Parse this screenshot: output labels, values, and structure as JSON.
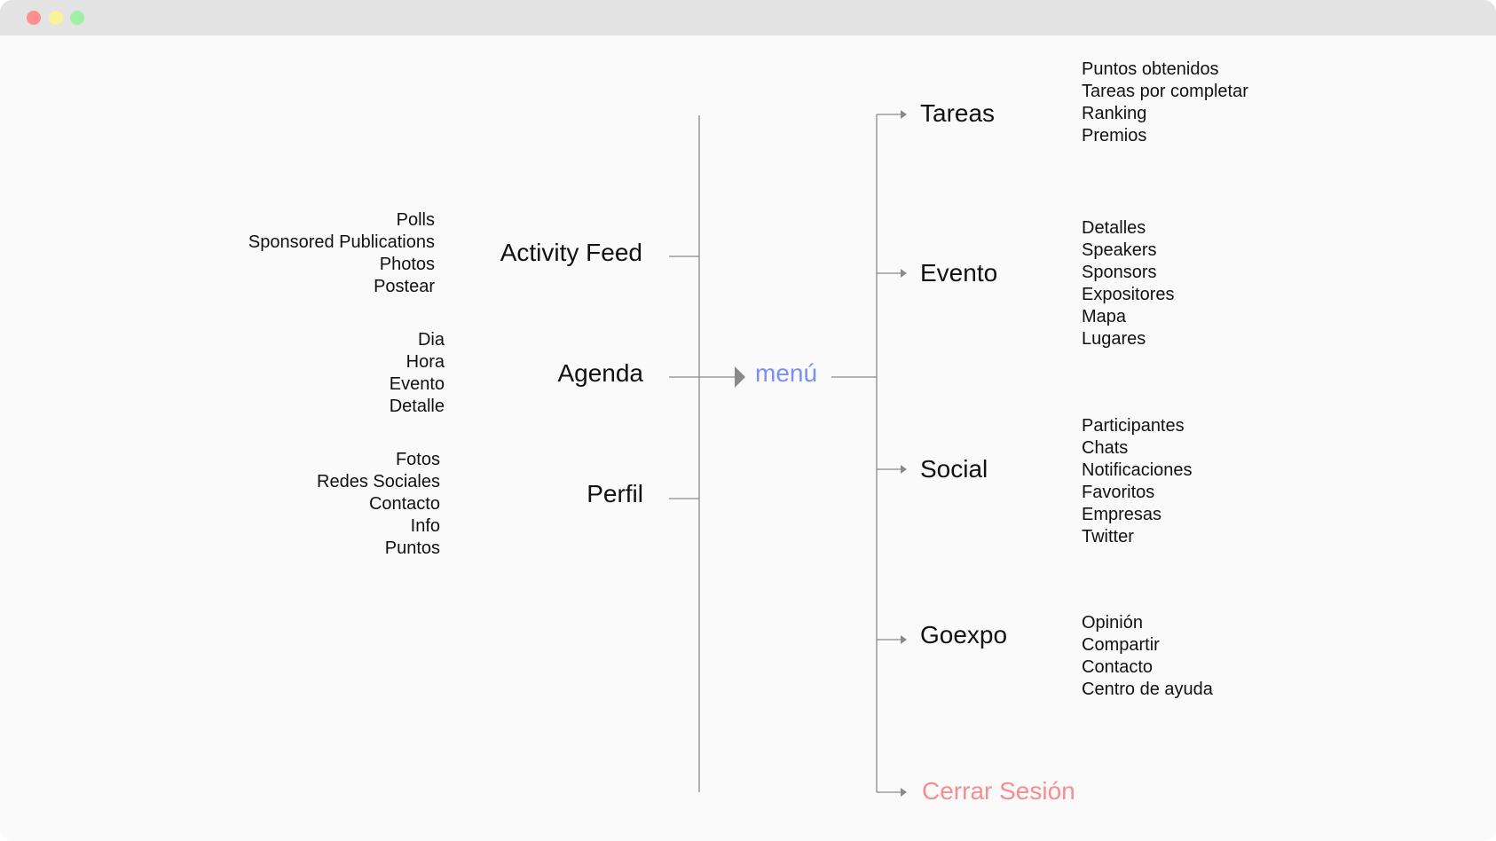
{
  "window": {
    "controls": [
      {
        "name": "close",
        "color": "#fd8f8f"
      },
      {
        "name": "minimize",
        "color": "#f8f29a"
      },
      {
        "name": "maximize",
        "color": "#9ff0a5"
      }
    ]
  },
  "colors": {
    "center": "#7b8ff0",
    "logout": "#f58f8f",
    "line": "#8a8a8a"
  },
  "center": {
    "label": "menú"
  },
  "left": [
    {
      "label": "Activity Feed",
      "items": [
        "Polls",
        "Sponsored Publications",
        "Photos",
        "Postear"
      ]
    },
    {
      "label": "Agenda",
      "items": [
        "Dia",
        "Hora",
        "Evento",
        "Detalle"
      ]
    },
    {
      "label": "Perfil",
      "items": [
        "Fotos",
        "Redes Sociales",
        "Contacto",
        "Info",
        "Puntos"
      ]
    }
  ],
  "right": [
    {
      "label": "Tareas",
      "items": [
        "Puntos obtenidos",
        "Tareas por completar",
        "Ranking",
        "Premios"
      ]
    },
    {
      "label": "Evento",
      "items": [
        "Detalles",
        "Speakers",
        "Sponsors",
        "Expositores",
        "Mapa",
        "Lugares"
      ]
    },
    {
      "label": "Social",
      "items": [
        "Participantes",
        "Chats",
        "Notificaciones",
        "Favoritos",
        "Empresas",
        "Twitter"
      ]
    },
    {
      "label": "Goexpo",
      "items": [
        "Opinión",
        "Compartir",
        "Contacto",
        "Centro de ayuda"
      ]
    }
  ],
  "logout": {
    "label": "Cerrar Sesión"
  }
}
